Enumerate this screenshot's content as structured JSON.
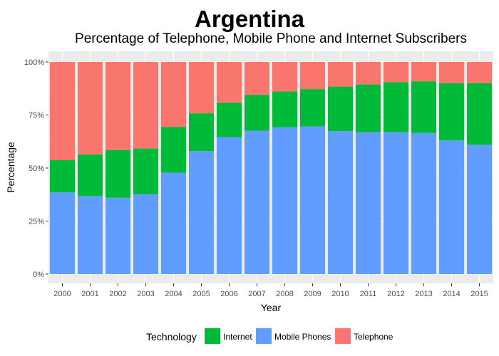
{
  "chart_data": {
    "type": "bar",
    "stacked": "percent",
    "title": "Argentina",
    "subtitle": "Percentage of Telephone, Mobile Phone and Internet Subscribers",
    "xlabel": "Year",
    "ylabel": "Percentage",
    "ylim": [
      0,
      100
    ],
    "yticks": [
      "0%",
      "25%",
      "50%",
      "75%",
      "100%"
    ],
    "grid": true,
    "legend_position": "bottom",
    "legend_title": "Technology",
    "categories": [
      "2000",
      "2001",
      "2002",
      "2003",
      "2004",
      "2005",
      "2006",
      "2007",
      "2008",
      "2009",
      "2010",
      "2011",
      "2012",
      "2013",
      "2014",
      "2015"
    ],
    "series": [
      {
        "name": "Mobile Phones",
        "color": "#619CFF",
        "values": [
          38.5,
          36.8,
          36.0,
          37.7,
          47.8,
          58.0,
          64.6,
          67.6,
          69.2,
          69.6,
          67.4,
          66.9,
          66.9,
          66.5,
          63.0,
          61.0
        ]
      },
      {
        "name": "Internet",
        "color": "#00BA38",
        "values": [
          15.2,
          19.6,
          22.5,
          21.5,
          21.6,
          17.8,
          16.2,
          16.9,
          16.9,
          17.6,
          21.0,
          22.5,
          23.6,
          24.4,
          27.0,
          29.0
        ]
      },
      {
        "name": "Telephone",
        "color": "#F8766D",
        "values": [
          46.3,
          43.6,
          41.5,
          40.8,
          30.6,
          24.2,
          19.2,
          15.5,
          13.9,
          12.8,
          11.6,
          10.6,
          9.5,
          9.1,
          10.0,
          10.0
        ]
      }
    ],
    "legend_order": [
      "Internet",
      "Mobile Phones",
      "Telephone"
    ]
  }
}
